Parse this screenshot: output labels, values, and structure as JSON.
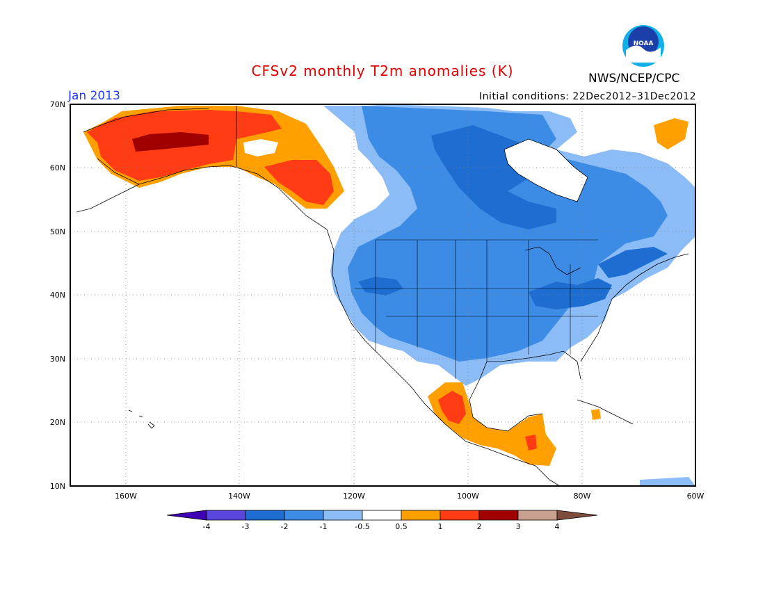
{
  "header": {
    "title": "CFSv2 monthly T2m anomalies (K)",
    "agency": "NWS/NCEP/CPC",
    "logo_text": "NOAA",
    "month": "Jan 2013",
    "initial_conditions": "Initial conditions: 22Dec2012–31Dec2012"
  },
  "axes": {
    "lon_ticks": [
      "160W",
      "140W",
      "120W",
      "100W",
      "80W",
      "60W"
    ],
    "lat_ticks": [
      "70N",
      "60N",
      "50N",
      "40N",
      "30N",
      "20N",
      "10N"
    ]
  },
  "colorbar": {
    "tick_labels": [
      "-4",
      "-3",
      "-2",
      "-1",
      "-0.5",
      "0.5",
      "1",
      "2",
      "3",
      "4"
    ],
    "colors": [
      "#3d00b4",
      "#5a46dc",
      "#1e6ed2",
      "#3c8ce6",
      "#8cbcf5",
      "#ffffff",
      "#ffa000",
      "#ff3c14",
      "#a00000",
      "#c8a090",
      "#7c4c3c"
    ]
  },
  "chart_data": {
    "type": "heatmap",
    "title": "CFSv2 monthly T2m anomalies (K)",
    "units": "K",
    "lon_range": [
      -171,
      -60
    ],
    "lat_range": [
      10,
      70
    ],
    "regions": [
      {
        "area": "Alaska",
        "anomaly_range": [
          1,
          3
        ]
      },
      {
        "area": "Yukon / British Columbia coast",
        "anomaly_range": [
          0.5,
          2
        ]
      },
      {
        "area": "Northern Canada / Hudson Bay",
        "anomaly_range": [
          -3,
          -1
        ]
      },
      {
        "area": "Contiguous United States",
        "anomaly_range": [
          -2,
          -0.5
        ]
      },
      {
        "area": "Ohio Valley / Mid-Atlantic",
        "anomaly_range": [
          -3,
          -2
        ]
      },
      {
        "area": "Mexico / Central America",
        "anomaly_range": [
          0.5,
          2
        ]
      }
    ]
  }
}
